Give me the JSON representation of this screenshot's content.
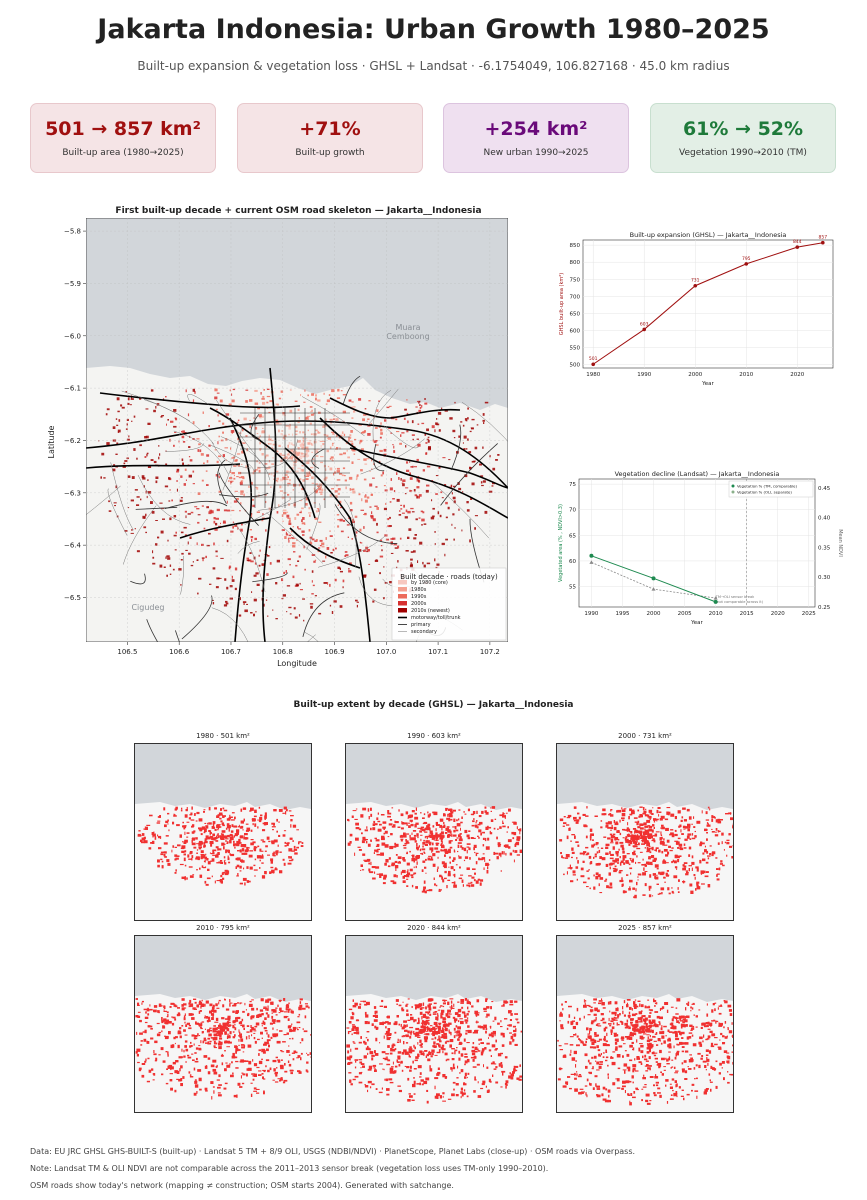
{
  "header": {
    "title": "Jakarta  Indonesia: Urban Growth 1980–2025",
    "subtitle": "Built-up expansion & vegetation loss  ·  GHSL + Landsat  ·  -6.1754049, 106.827168  ·  45.0 km radius"
  },
  "cards": [
    {
      "value": "501 → 857 km²",
      "label": "Built-up area (1980→2025)",
      "color": "#a01010",
      "bg": "#f5e4e6"
    },
    {
      "value": "+71%",
      "label": "Built-up growth",
      "color": "#a01010",
      "bg": "#f5e4e6"
    },
    {
      "value": "+254 km²",
      "label": "New urban 1990→2025",
      "color": "#6a0a7a",
      "bg": "#efe0f0"
    },
    {
      "value": "61% → 52%",
      "label": "Vegetation 1990→2010 (TM)",
      "color": "#1e7a3a",
      "bg": "#e3efe6"
    }
  ],
  "map": {
    "title": "First built-up decade + current OSM road skeleton — Jakarta__Indonesia",
    "xlabel": "Longitude",
    "ylabel": "Latitude",
    "xticks": [
      "106.5",
      "106.6",
      "106.7",
      "106.8",
      "106.9",
      "107.0",
      "107.1",
      "107.2"
    ],
    "yticks": [
      "−5.8",
      "−5.9",
      "−6.0",
      "−6.1",
      "−6.2",
      "−6.3",
      "−6.4",
      "−6.5"
    ],
    "place_labels": [
      "Muara",
      "Cemboong",
      "Cigudeg"
    ],
    "legend": {
      "title": "Built decade  ·  roads (today)",
      "items": [
        "by 1980 (core)",
        "1980s",
        "1990s",
        "2000s",
        "2010s (newest)",
        "motorway/toll/trunk",
        "primary",
        "secondary"
      ],
      "colors": [
        "#f7c8c0",
        "#f4a090",
        "#ec6a5a",
        "#d63030",
        "#a00000",
        "#000000",
        "#333333",
        "#888888"
      ]
    }
  },
  "chart_data": [
    {
      "type": "line",
      "title": "Built-up expansion (GHSL) — Jakarta__Indonesia",
      "xlabel": "Year",
      "ylabel": "GHSL built-up area (km²)",
      "x": [
        1980,
        1990,
        2000,
        2010,
        2020,
        2025
      ],
      "series": [
        {
          "values": [
            501,
            603,
            731,
            795,
            844,
            857
          ]
        }
      ],
      "data_labels": [
        "501",
        "603",
        "731",
        "795",
        "844",
        "857"
      ],
      "xticks": [
        "1980",
        "1990",
        "2000",
        "2010",
        "2020"
      ],
      "yticks": [
        "500",
        "550",
        "600",
        "650",
        "700",
        "750",
        "800",
        "850"
      ],
      "ylim": [
        490,
        865
      ],
      "xlim": [
        1978,
        2027
      ],
      "grid": true,
      "color": "#a01010"
    },
    {
      "type": "line",
      "title": "Vegetation decline (Landsat) — Jakarta__Indonesia",
      "xlabel": "Year",
      "ylabel": "Vegetated area (% , NDVI>0.3)",
      "ylabel2": "Mean NDVI",
      "x": [
        1990,
        2000,
        2010
      ],
      "series": [
        {
          "name": "Vegetation % (TM, comparable)",
          "values": [
            61,
            56.6,
            52
          ],
          "color": "#1e8a50"
        },
        {
          "name": "Vegetation % (OLI, separate)",
          "values": [
            0.325,
            0.28,
            0.265
          ],
          "axis": "right",
          "color": "#888888"
        }
      ],
      "xticks": [
        "1990",
        "1995",
        "2000",
        "2005",
        "2010",
        "2015",
        "2020",
        "2025"
      ],
      "yticks": [
        "55",
        "60",
        "65",
        "70",
        "75"
      ],
      "yticks2": [
        "0.25",
        "0.30",
        "0.35",
        "0.40",
        "0.45"
      ],
      "xlim": [
        1988,
        2026
      ],
      "ylim": [
        51,
        76
      ],
      "y2lim": [
        0.25,
        0.465
      ],
      "annotations": [
        "TM→OLI sensor break",
        "(not comparable across it)"
      ],
      "grid": true
    }
  ],
  "decades": {
    "title": "Built-up extent by decade (GHSL) — Jakarta__Indonesia",
    "tiles": [
      {
        "label": "1980  ·  501 km²",
        "level": 0.35
      },
      {
        "label": "1990  ·  603 km²",
        "level": 0.48
      },
      {
        "label": "2000  ·  731 km²",
        "level": 0.64
      },
      {
        "label": "2010  ·  795 km²",
        "level": 0.78
      },
      {
        "label": "2020  ·  844 km²",
        "level": 0.88
      },
      {
        "label": "2025  ·  857 km²",
        "level": 0.92
      }
    ]
  },
  "footer": [
    "Data: EU JRC GHSL GHS-BUILT-S (built-up)  ·  Landsat 5 TM + 8/9 OLI, USGS (NDBI/NDVI)  ·  PlanetScope, Planet Labs (close-up)  ·  OSM roads via Overpass.",
    "Note: Landsat TM & OLI NDVI are not comparable across the 2011–2013 sensor break (vegetation loss uses TM-only 1990–2010).",
    "OSM roads show today's network (mapping ≠ construction; OSM starts 2004).  Generated with satchange."
  ]
}
